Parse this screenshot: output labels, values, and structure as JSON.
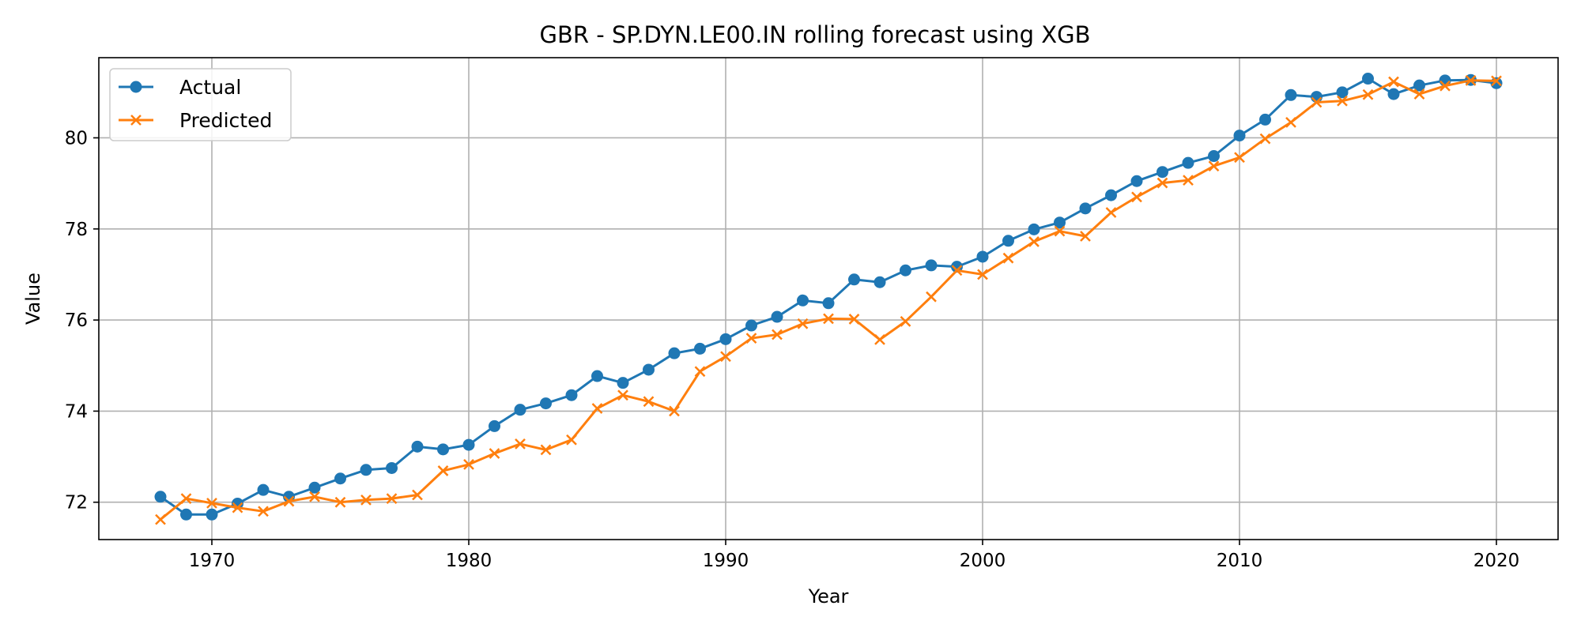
{
  "chart_data": {
    "type": "line",
    "title": "GBR - SP.DYN.LE00.IN rolling forecast using XGB",
    "xlabel": "Year",
    "ylabel": "Value",
    "xlim": [
      1965.6,
      2022.4
    ],
    "ylim": [
      71.18,
      81.76
    ],
    "xticks": [
      1970,
      1980,
      1990,
      2000,
      2010,
      2020
    ],
    "yticks": [
      72,
      74,
      76,
      78,
      80
    ],
    "grid": true,
    "legend_position": "top-left",
    "x": [
      1968,
      1969,
      1970,
      1971,
      1972,
      1973,
      1974,
      1975,
      1976,
      1977,
      1978,
      1979,
      1980,
      1981,
      1982,
      1983,
      1984,
      1985,
      1986,
      1987,
      1988,
      1989,
      1990,
      1991,
      1992,
      1993,
      1994,
      1995,
      1996,
      1997,
      1998,
      1999,
      2000,
      2001,
      2002,
      2003,
      2004,
      2005,
      2006,
      2007,
      2008,
      2009,
      2010,
      2011,
      2012,
      2013,
      2014,
      2015,
      2016,
      2017,
      2018,
      2019,
      2020
    ],
    "series": [
      {
        "name": "Actual",
        "color": "#1f77b4",
        "marker": "circle",
        "values": [
          72.12,
          71.73,
          71.73,
          71.97,
          72.27,
          72.12,
          72.32,
          72.52,
          72.71,
          72.75,
          73.22,
          73.16,
          73.26,
          73.67,
          74.03,
          74.17,
          74.35,
          74.77,
          74.62,
          74.91,
          75.27,
          75.37,
          75.58,
          75.88,
          76.07,
          76.43,
          76.37,
          76.89,
          76.83,
          77.09,
          77.2,
          77.17,
          77.39,
          77.74,
          77.99,
          78.14,
          78.45,
          78.74,
          79.05,
          79.25,
          79.45,
          79.6,
          80.05,
          80.4,
          80.94,
          80.9,
          81.0,
          81.3,
          80.96,
          81.15,
          81.26,
          81.27,
          81.2
        ]
      },
      {
        "name": "Predicted",
        "color": "#ff7f0e",
        "marker": "x",
        "values": [
          71.62,
          72.08,
          71.98,
          71.88,
          71.8,
          72.02,
          72.12,
          72.0,
          72.05,
          72.08,
          72.16,
          72.69,
          72.83,
          73.07,
          73.28,
          73.15,
          73.37,
          74.06,
          74.35,
          74.21,
          74.0,
          74.87,
          75.2,
          75.6,
          75.68,
          75.92,
          76.03,
          76.02,
          75.57,
          75.97,
          76.51,
          77.09,
          77.0,
          77.36,
          77.72,
          77.95,
          77.84,
          78.36,
          78.7,
          79.01,
          79.07,
          79.38,
          79.57,
          79.98,
          80.34,
          80.78,
          80.81,
          80.95,
          81.23,
          80.96,
          81.14,
          81.26,
          81.25
        ]
      }
    ]
  }
}
